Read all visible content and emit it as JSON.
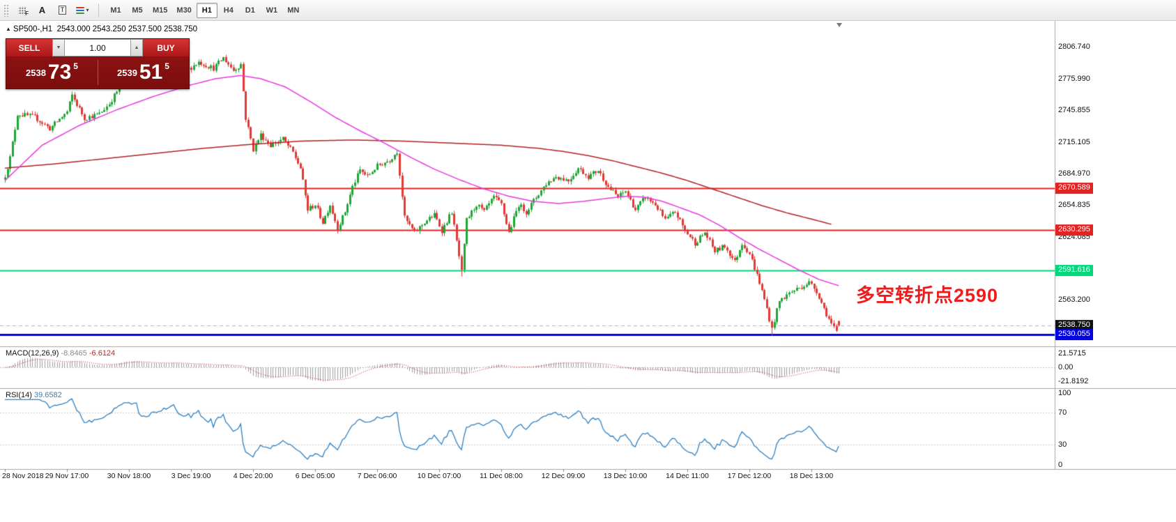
{
  "toolbar": {
    "icons": [
      {
        "name": "indicators-grid-icon",
        "glyph": "F"
      },
      {
        "name": "letter-a-icon",
        "glyph": "A"
      },
      {
        "name": "text-label-icon",
        "glyph": "T"
      },
      {
        "name": "line-styles-icon",
        "glyph": "▾"
      }
    ],
    "timeframes": [
      "M1",
      "M5",
      "M15",
      "M30",
      "H1",
      "H4",
      "D1",
      "W1",
      "MN"
    ],
    "active": "H1"
  },
  "symbol_info": {
    "marker": "▲",
    "symbol": "SP500-",
    "timeframe": "H1",
    "open": "2543.000",
    "high": "2543.250",
    "low": "2537.500",
    "close": "2538.750",
    "line": "SP500-,H1  2543.000 2543.250 2537.500 2538.750"
  },
  "trade_panel": {
    "sell_label": "SELL",
    "buy_label": "BUY",
    "volume": "1.00",
    "spin_down": "▼",
    "spin_up": "▲",
    "bid": {
      "int": "2538",
      "pips": "73",
      "pipette": "5"
    },
    "ask": {
      "int": "2539",
      "pips": "51",
      "pipette": "5"
    },
    "panel_color": "#8c1212",
    "button_color": "#c42424"
  },
  "annotation": {
    "text": "多空转折点2590",
    "color": "#ee1c1c"
  },
  "price_axis": {
    "labels": [
      "2806.740",
      "2775.990",
      "2745.855",
      "2715.105",
      "2684.970",
      "2654.835",
      "2624.085",
      "2563.200"
    ],
    "badges": [
      {
        "text": "2670.589",
        "bg": "#e32222"
      },
      {
        "text": "2630.295",
        "bg": "#e32222"
      },
      {
        "text": "2591.616",
        "bg": "#00d87c"
      },
      {
        "text": "2538.750",
        "bg": "#111111"
      },
      {
        "text": "2530.055",
        "bg": "#0000e0"
      }
    ]
  },
  "macd": {
    "label": "MACD(12,26,9)",
    "value_main": "-8.8465",
    "value_signal": "-6.6124",
    "axis": [
      "21.5715",
      "0.00",
      "-21.8192"
    ]
  },
  "rsi": {
    "label": "RSI(14)",
    "value": "39.6582",
    "axis": [
      "100",
      "70",
      "30",
      "0"
    ]
  },
  "time_axis": [
    "28 Nov 2018",
    "29 Nov 17:00",
    "30 Nov 18:00",
    "3 Dec 19:00",
    "4 Dec 20:00",
    "6 Dec 05:00",
    "7 Dec 06:00",
    "10 Dec 07:00",
    "11 Dec 08:00",
    "12 Dec 09:00",
    "13 Dec 10:00",
    "14 Dec 11:00",
    "17 Dec 12:00",
    "18 Dec 13:00"
  ],
  "chart_data": {
    "type": "candlestick",
    "symbol": "SP500-",
    "timeframe": "H1",
    "bars": 337,
    "price_axis_top": 2831.5,
    "points_per_pixel": 0.67,
    "last_bar": {
      "open": 2543.0,
      "high": 2543.25,
      "low": 2537.5,
      "close": 2538.75
    },
    "candle_up_color": "#1fa637",
    "candle_down_color": "#e03a36",
    "price_anchors": [
      [
        0,
        2683
      ],
      [
        2,
        2700
      ],
      [
        5,
        2742
      ],
      [
        12,
        2739
      ],
      [
        18,
        2728
      ],
      [
        25,
        2744
      ],
      [
        27,
        2760
      ],
      [
        32,
        2738
      ],
      [
        38,
        2742
      ],
      [
        42,
        2752
      ],
      [
        48,
        2775
      ],
      [
        52,
        2780
      ],
      [
        56,
        2770
      ],
      [
        62,
        2778
      ],
      [
        68,
        2788
      ],
      [
        72,
        2782
      ],
      [
        78,
        2792
      ],
      [
        84,
        2786
      ],
      [
        88,
        2796
      ],
      [
        92,
        2784
      ],
      [
        95,
        2790
      ],
      [
        97,
        2738
      ],
      [
        100,
        2708
      ],
      [
        103,
        2722
      ],
      [
        107,
        2712
      ],
      [
        112,
        2718
      ],
      [
        116,
        2705
      ],
      [
        119,
        2690
      ],
      [
        122,
        2650
      ],
      [
        125,
        2655
      ],
      [
        128,
        2638
      ],
      [
        131,
        2655
      ],
      [
        134,
        2632
      ],
      [
        137,
        2648
      ],
      [
        140,
        2672
      ],
      [
        143,
        2688
      ],
      [
        146,
        2682
      ],
      [
        150,
        2692
      ],
      [
        155,
        2698
      ],
      [
        158,
        2706
      ],
      [
        161,
        2642
      ],
      [
        165,
        2628
      ],
      [
        169,
        2638
      ],
      [
        173,
        2645
      ],
      [
        176,
        2630
      ],
      [
        180,
        2648
      ],
      [
        183,
        2605
      ],
      [
        184,
        2590
      ],
      [
        186,
        2640
      ],
      [
        190,
        2655
      ],
      [
        193,
        2648
      ],
      [
        197,
        2662
      ],
      [
        200,
        2655
      ],
      [
        203,
        2628
      ],
      [
        207,
        2655
      ],
      [
        210,
        2648
      ],
      [
        214,
        2662
      ],
      [
        218,
        2675
      ],
      [
        222,
        2682
      ],
      [
        227,
        2678
      ],
      [
        231,
        2690
      ],
      [
        235,
        2682
      ],
      [
        239,
        2688
      ],
      [
        243,
        2672
      ],
      [
        247,
        2662
      ],
      [
        250,
        2668
      ],
      [
        254,
        2650
      ],
      [
        258,
        2662
      ],
      [
        262,
        2655
      ],
      [
        266,
        2640
      ],
      [
        270,
        2648
      ],
      [
        274,
        2630
      ],
      [
        278,
        2618
      ],
      [
        282,
        2628
      ],
      [
        286,
        2610
      ],
      [
        290,
        2615
      ],
      [
        294,
        2600
      ],
      [
        297,
        2618
      ],
      [
        300,
        2608
      ],
      [
        304,
        2580
      ],
      [
        307,
        2555
      ],
      [
        309,
        2535
      ],
      [
        312,
        2562
      ],
      [
        316,
        2570
      ],
      [
        320,
        2575
      ],
      [
        324,
        2580
      ],
      [
        327,
        2572
      ],
      [
        330,
        2555
      ],
      [
        333,
        2540
      ],
      [
        335,
        2532
      ],
      [
        336,
        2538.75
      ]
    ],
    "ma_fast": {
      "name": "fast-ma",
      "color": "#e838e0",
      "anchors": [
        [
          0,
          2678
        ],
        [
          15,
          2712
        ],
        [
          30,
          2731
        ],
        [
          45,
          2746
        ],
        [
          60,
          2759
        ],
        [
          75,
          2770
        ],
        [
          85,
          2776
        ],
        [
          95,
          2779
        ],
        [
          103,
          2776
        ],
        [
          113,
          2768
        ],
        [
          123,
          2754
        ],
        [
          133,
          2739
        ],
        [
          143,
          2726
        ],
        [
          153,
          2714
        ],
        [
          163,
          2701
        ],
        [
          173,
          2689
        ],
        [
          183,
          2679
        ],
        [
          193,
          2670
        ],
        [
          203,
          2663
        ],
        [
          213,
          2658
        ],
        [
          223,
          2656
        ],
        [
          233,
          2658
        ],
        [
          243,
          2661
        ],
        [
          251,
          2663
        ],
        [
          258,
          2662
        ],
        [
          265,
          2658
        ],
        [
          272,
          2652
        ],
        [
          280,
          2645
        ],
        [
          288,
          2635
        ],
        [
          296,
          2623
        ],
        [
          304,
          2612
        ],
        [
          312,
          2602
        ],
        [
          320,
          2592
        ],
        [
          328,
          2583
        ],
        [
          336,
          2577
        ]
      ]
    },
    "ma_slow": {
      "name": "slow-ma",
      "color": "#b22222",
      "anchors": [
        [
          0,
          2690
        ],
        [
          20,
          2694
        ],
        [
          40,
          2699
        ],
        [
          60,
          2704
        ],
        [
          80,
          2709
        ],
        [
          100,
          2713
        ],
        [
          120,
          2716
        ],
        [
          140,
          2717
        ],
        [
          160,
          2716
        ],
        [
          180,
          2714
        ],
        [
          200,
          2712
        ],
        [
          215,
          2709
        ],
        [
          225,
          2706
        ],
        [
          235,
          2702
        ],
        [
          245,
          2697
        ],
        [
          255,
          2691
        ],
        [
          265,
          2685
        ],
        [
          275,
          2678
        ],
        [
          285,
          2670
        ],
        [
          295,
          2662
        ],
        [
          305,
          2654
        ],
        [
          315,
          2647
        ],
        [
          325,
          2641
        ],
        [
          333,
          2636
        ]
      ]
    },
    "hlines": [
      {
        "price": 2670.589,
        "color": "#e32222",
        "width": 2
      },
      {
        "price": 2630.295,
        "color": "#e32222",
        "width": 2
      },
      {
        "price": 2591.616,
        "color": "#00d87c",
        "width": 2
      },
      {
        "price": 2530.055,
        "color": "#0000e0",
        "width": 3
      }
    ],
    "bid_line": {
      "price": 2538.75,
      "color": "#b0b6c8"
    },
    "macd": {
      "fast": 12,
      "slow": 26,
      "signal": 9,
      "main": -8.8465,
      "signal_value": -6.6124,
      "scale_max": 21.5715,
      "scale_min": -21.8192,
      "hist_color": "#9e9e9e",
      "signal_color": "#cc2222"
    },
    "rsi": {
      "period": 14,
      "value": 39.6582,
      "color": "#2f80c0",
      "levels": [
        70,
        30
      ],
      "level_color": "#c8c8c8"
    },
    "time_labels_every_bars": 25
  }
}
